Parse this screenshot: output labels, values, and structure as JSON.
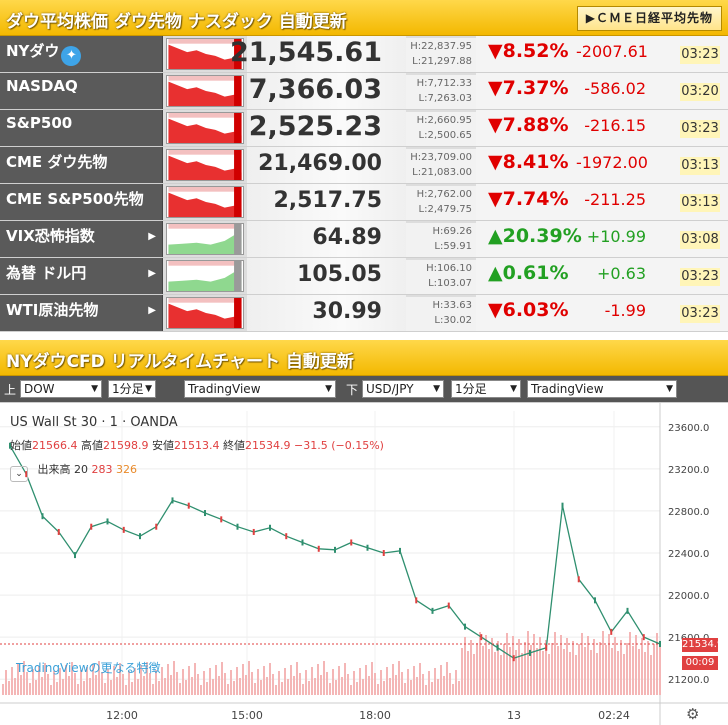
{
  "header": {
    "title": "ダウ平均株価 ダウ先物 ナスダック 自動更新",
    "cme_button": "▶ＣＭＥ日経平均先物"
  },
  "tickers": [
    {
      "name": "NYダウ",
      "twitter_icon": "twitter-bird-icon",
      "price": "21,545.61",
      "high": "H:22,837.95",
      "low": "L:21,297.88",
      "pct": "▼8.52%",
      "change": "-2007.61",
      "time": "03:23",
      "dir": "down",
      "big": true,
      "arrow": false
    },
    {
      "name": "NASDAQ",
      "price": "7,366.03",
      "high": "H:7,712.33",
      "low": "L:7,263.03",
      "pct": "▼7.37%",
      "change": "-586.02",
      "time": "03:20",
      "dir": "down",
      "big": true,
      "arrow": false
    },
    {
      "name": "S&P500",
      "price": "2,525.23",
      "high": "H:2,660.95",
      "low": "L:2,500.65",
      "pct": "▼7.88%",
      "change": "-216.15",
      "time": "03:23",
      "dir": "down",
      "big": true,
      "arrow": false
    },
    {
      "name": "CME ダウ先物",
      "price": "21,469.00",
      "high": "H:23,709.00",
      "low": "L:21,083.00",
      "pct": "▼8.41%",
      "change": "-1972.00",
      "time": "03:13",
      "dir": "down",
      "big": false,
      "arrow": false
    },
    {
      "name": "CME S&P500先物",
      "price": "2,517.75",
      "high": "H:2,762.00",
      "low": "L:2,479.75",
      "pct": "▼7.74%",
      "change": "-211.25",
      "time": "03:13",
      "dir": "down",
      "big": false,
      "arrow": false
    },
    {
      "name": "VIX恐怖指数",
      "price": "64.89",
      "high": "H:69.26",
      "low": "L:59.91",
      "pct": "▲20.39%",
      "change": "+10.99",
      "time": "03:08",
      "dir": "up",
      "big": false,
      "arrow": true
    },
    {
      "name": "為替 ドル円",
      "price": "105.05",
      "high": "H:106.10",
      "low": "L:103.07",
      "pct": "▲0.61%",
      "change": "+0.63",
      "time": "03:23",
      "dir": "up",
      "big": false,
      "arrow": true
    },
    {
      "name": "WTI原油先物",
      "price": "30.99",
      "high": "H:33.63",
      "low": "L:30.02",
      "pct": "▼6.03%",
      "change": "-1.99",
      "time": "03:23",
      "dir": "down",
      "big": false,
      "arrow": true
    }
  ],
  "cfd": {
    "title": "NYダウCFD リアルタイムチャート 自動更新",
    "upper_label": "上",
    "lower_label": "下",
    "upper": {
      "symbol": "DOW",
      "interval": "1分足",
      "source": "TradingView"
    },
    "lower": {
      "symbol": "USD/JPY",
      "interval": "1分足",
      "source": "TradingView"
    }
  },
  "chart": {
    "legend": "US Wall St 30 · 1 · OANDA",
    "open_label": "始値",
    "open": "21566.4",
    "high_label": "高値",
    "high": "21598.9",
    "low_label": "安値",
    "low": "21513.4",
    "close_label": "終値",
    "close": "21534.9",
    "change": "−31.5 (−0.15%)",
    "volume_label": "出来高",
    "vol1": "20",
    "vol2": "283",
    "vol3": "326",
    "tv_link": "TradingViewの更なる特徴",
    "price_tag": "21534.9",
    "time_tag": "00:09",
    "gear_icon": "gear-icon"
  },
  "chart_data": {
    "type": "line",
    "x_ticks": [
      "12:00",
      "15:00",
      "18:00",
      "13",
      "02:24"
    ],
    "y_ticks": [
      "23600.0",
      "23200.0",
      "22800.0",
      "22400.0",
      "22000.0",
      "21600.0",
      "21200.0"
    ],
    "ylim": [
      21050,
      23750
    ],
    "last_value": 21534.9,
    "series": [
      {
        "values": [
          23420,
          23150,
          22750,
          22600,
          22380,
          22650,
          22700,
          22620,
          22560,
          22650,
          22900,
          22850,
          22780,
          22720,
          22650,
          22600,
          22640,
          22560,
          22500,
          22440,
          22430,
          22500,
          22450,
          22400,
          22420,
          21950,
          21850,
          21900,
          21700,
          21600,
          21500,
          21400,
          21450,
          21500,
          22850,
          22150,
          21950,
          21650,
          21850,
          21600,
          21535
        ]
      }
    ]
  }
}
